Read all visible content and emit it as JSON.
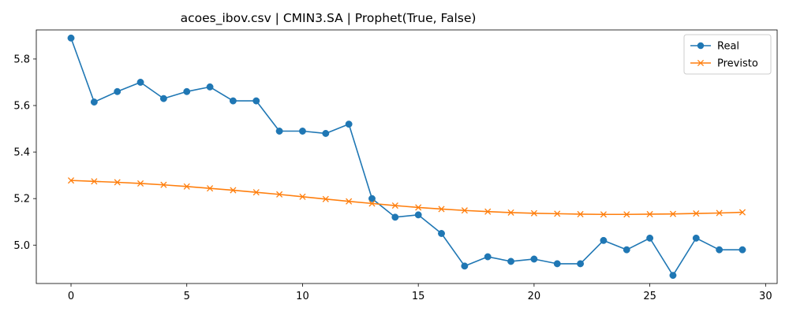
{
  "chart_data": {
    "type": "line",
    "title": "acoes_ibov.csv | CMIN3.SA | Prophet(True, False)",
    "xlabel": "",
    "ylabel": "",
    "xlim": [
      -1.5,
      30.5
    ],
    "ylim": [
      4.835,
      5.925
    ],
    "xticks": [
      0,
      5,
      10,
      15,
      20,
      25,
      30
    ],
    "yticks": [
      5.0,
      5.2,
      5.4,
      5.6,
      5.8
    ],
    "ytick_labels": [
      "5.0",
      "5.2",
      "5.4",
      "5.6",
      "5.8"
    ],
    "grid": false,
    "legend_position": "top-right",
    "x": [
      0,
      1,
      2,
      3,
      4,
      5,
      6,
      7,
      8,
      9,
      10,
      11,
      12,
      13,
      14,
      15,
      16,
      17,
      18,
      19,
      20,
      21,
      22,
      23,
      24,
      25,
      26,
      27,
      28,
      29
    ],
    "series": [
      {
        "name": "Real",
        "color": "#1f77b4",
        "marker": "circle",
        "values": [
          5.89,
          5.615,
          5.66,
          5.7,
          5.63,
          5.66,
          5.68,
          5.62,
          5.62,
          5.49,
          5.49,
          5.48,
          5.52,
          5.2,
          5.12,
          5.13,
          5.05,
          4.91,
          4.95,
          4.93,
          4.94,
          4.92,
          4.92,
          5.02,
          4.98,
          5.03,
          4.87,
          5.03,
          4.98,
          4.98
        ]
      },
      {
        "name": "Previsto",
        "color": "#ff7f0e",
        "marker": "x",
        "values": [
          5.278,
          5.274,
          5.27,
          5.265,
          5.259,
          5.252,
          5.244,
          5.236,
          5.227,
          5.218,
          5.208,
          5.198,
          5.188,
          5.179,
          5.17,
          5.162,
          5.155,
          5.149,
          5.144,
          5.14,
          5.137,
          5.135,
          5.133,
          5.132,
          5.132,
          5.133,
          5.134,
          5.136,
          5.138,
          5.141
        ]
      }
    ]
  }
}
